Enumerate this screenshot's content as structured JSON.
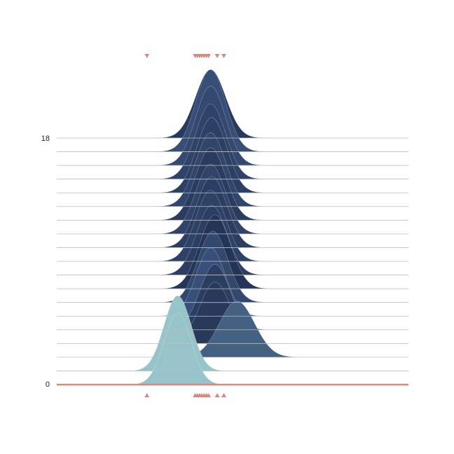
{
  "chart_data": {
    "type": "area",
    "title": "",
    "xlabel": "",
    "ylabel": "",
    "ylim": [
      0,
      18
    ],
    "y_tick_labels": [
      "0",
      "18"
    ],
    "grid": false,
    "legend": "none",
    "ridge_spacing": 1,
    "series": [
      {
        "baseline": 0,
        "mean": -1.0,
        "peak": 5.2,
        "sd": 0.62,
        "color": "#96c4c9"
      },
      {
        "baseline": 1,
        "mean": -1.0,
        "peak": 5.5,
        "sd": 0.62,
        "color": "#96c4c9"
      },
      {
        "baseline": 2,
        "mean": 1.7,
        "peak": 4.1,
        "sd": 0.8,
        "color": "#446182"
      },
      {
        "baseline": 3,
        "mean": 0.7,
        "peak": 4.5,
        "sd": 0.7,
        "color": "#28395a"
      },
      {
        "baseline": 4,
        "mean": 0.7,
        "peak": 4.8,
        "sd": 0.68,
        "color": "#2c3e60"
      },
      {
        "baseline": 5,
        "mean": 0.5,
        "peak": 5.0,
        "sd": 0.66,
        "color": "#36507a"
      },
      {
        "baseline": 6,
        "mean": 0.6,
        "peak": 5.2,
        "sd": 0.68,
        "color": "#33486d"
      },
      {
        "baseline": 7,
        "mean": 0.7,
        "peak": 5.4,
        "sd": 0.7,
        "color": "#243456"
      },
      {
        "baseline": 8,
        "mean": 0.55,
        "peak": 5.1,
        "sd": 0.68,
        "color": "#2c3e62"
      },
      {
        "baseline": 9,
        "mean": 0.5,
        "peak": 5.2,
        "sd": 0.68,
        "color": "#2e4166"
      },
      {
        "baseline": 10,
        "mean": 0.55,
        "peak": 5.2,
        "sd": 0.68,
        "color": "#2b3d60"
      },
      {
        "baseline": 11,
        "mean": 0.5,
        "peak": 5.1,
        "sd": 0.68,
        "color": "#30446a"
      },
      {
        "baseline": 12,
        "mean": 0.5,
        "peak": 5.3,
        "sd": 0.68,
        "color": "#2a3b5d"
      },
      {
        "baseline": 13,
        "mean": 0.5,
        "peak": 5.4,
        "sd": 0.68,
        "color": "#31466c"
      },
      {
        "baseline": 14,
        "mean": 0.55,
        "peak": 5.5,
        "sd": 0.68,
        "color": "#2d4064"
      },
      {
        "baseline": 15,
        "mean": 0.5,
        "peak": 5.5,
        "sd": 0.68,
        "color": "#2f4267"
      },
      {
        "baseline": 16,
        "mean": 0.5,
        "peak": 5.8,
        "sd": 0.68,
        "color": "#34496f"
      },
      {
        "baseline": 17,
        "mean": 0.5,
        "peak": 6.0,
        "sd": 0.68,
        "color": "#374f77"
      },
      {
        "baseline": 18,
        "mean": 0.5,
        "peak": 5.0,
        "sd": 0.68,
        "color": "#283a5c"
      }
    ],
    "rug": {
      "color": "#d98880",
      "x": [
        -2.4,
        -0.2,
        -0.1,
        0.0,
        0.1,
        0.2,
        0.3,
        0.4,
        0.8,
        1.1
      ]
    },
    "xlim": [
      -6.5,
      9.5
    ]
  },
  "ui": {
    "baseline_color": "#d98880",
    "line_color": "#b8bec6"
  }
}
